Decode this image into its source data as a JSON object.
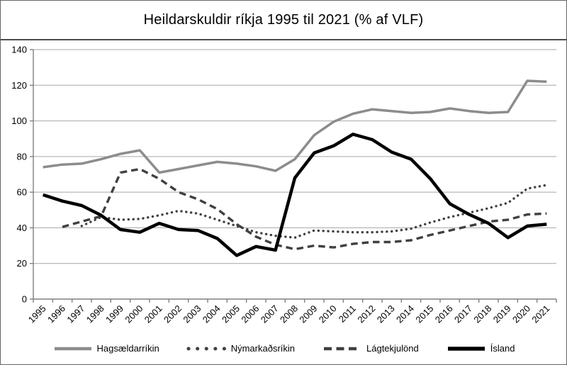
{
  "window_title": "Heildarskuldir ríkja 1995 til 2021 (% af VLF)",
  "chart_data": {
    "type": "line",
    "title": "Heildarskuldir ríkja 1995 til 2021 (% af VLF)",
    "xlabel": "",
    "ylabel": "",
    "ylim": [
      0,
      140
    ],
    "ytick_step": 20,
    "grid": true,
    "legend_position": "bottom",
    "x_tick_labels_rotation_deg": -45,
    "categories": [
      "1995",
      "1996",
      "1997",
      "1998",
      "1999",
      "2000",
      "2001",
      "2002",
      "2003",
      "2004",
      "2005",
      "2006",
      "2007",
      "2008",
      "2009",
      "2010",
      "2011",
      "2012",
      "2013",
      "2014",
      "2015",
      "2016",
      "2017",
      "2018",
      "2019",
      "2020",
      "2021"
    ],
    "series": [
      {
        "name": "Hagsældarríkin",
        "style": "solid",
        "color": "#8c8c8c",
        "width": 3.5,
        "values": [
          74,
          75.5,
          76,
          78.5,
          81.5,
          83.5,
          71,
          73,
          75,
          77,
          76,
          74.5,
          72,
          78.5,
          92,
          99.5,
          104,
          106.5,
          105.5,
          104.5,
          105,
          107,
          105.5,
          104.5,
          105,
          122.5,
          122
        ]
      },
      {
        "name": "Nýmarkaðsríkin",
        "style": "dotted",
        "color": "#404040",
        "width": 3.4,
        "values": [
          null,
          null,
          41,
          46,
          44.5,
          45,
          47,
          49.5,
          48,
          44.5,
          41,
          37.5,
          35.5,
          34.5,
          38.5,
          38,
          37.5,
          37.5,
          38,
          39.5,
          43,
          46,
          48.5,
          51,
          54,
          62,
          64
        ]
      },
      {
        "name": "Lágtekjulönd",
        "style": "dashed",
        "color": "#404040",
        "width": 3.4,
        "values": [
          null,
          40.5,
          43.5,
          46.5,
          71,
          73,
          67.5,
          60,
          56,
          50.5,
          42,
          35,
          30.5,
          28,
          30,
          29,
          31,
          32,
          32,
          33,
          36,
          38.5,
          41,
          43.5,
          44.5,
          47.5,
          48
        ]
      },
      {
        "name": "Ísland",
        "style": "solid",
        "color": "#000000",
        "width": 4.5,
        "values": [
          58.5,
          55,
          52.5,
          47,
          39,
          37.5,
          42.5,
          39,
          38.5,
          34,
          24.5,
          29.5,
          27.5,
          68,
          82,
          86,
          92.5,
          89.5,
          82.5,
          78.5,
          67.5,
          53.5,
          47.5,
          42.5,
          34.5,
          41,
          42
        ]
      }
    ],
    "colors": {
      "grid": "#a6a6a6",
      "axis": "#808080",
      "text": "#000000",
      "border": "#595959",
      "background": "#ffffff"
    }
  }
}
